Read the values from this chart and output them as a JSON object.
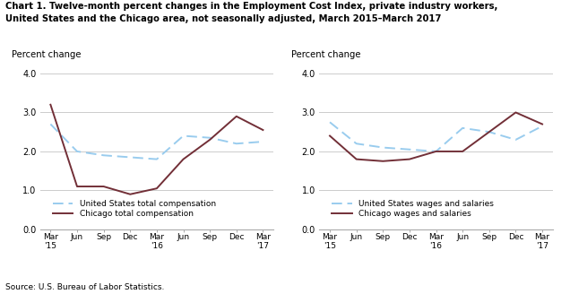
{
  "title_line1": "Chart 1. Twelve-month percent changes in the Employment Cost Index, private industry workers,",
  "title_line2": "United States and the Chicago area, not seasonally adjusted, March 2015–March 2017",
  "source": "Source: U.S. Bureau of Labor Statistics.",
  "ylabel": "Percent change",
  "xlabels": [
    "Mar\n'15",
    "Jun",
    "Sep",
    "Dec",
    "Mar\n'16",
    "Jun",
    "Sep",
    "Dec",
    "Mar\n'17"
  ],
  "ylim": [
    0.0,
    4.0
  ],
  "yticks": [
    0.0,
    1.0,
    2.0,
    3.0,
    4.0
  ],
  "left_us": [
    2.7,
    2.0,
    1.9,
    1.85,
    1.8,
    2.4,
    2.35,
    2.2,
    2.25
  ],
  "left_chicago": [
    3.2,
    1.1,
    1.1,
    0.9,
    1.05,
    1.8,
    2.3,
    2.9,
    2.55
  ],
  "left_legend_us": "United States total compensation",
  "left_legend_chicago": "Chicago total compensation",
  "right_us": [
    2.75,
    2.2,
    2.1,
    2.05,
    2.0,
    2.6,
    2.5,
    2.3,
    2.65
  ],
  "right_chicago": [
    2.4,
    1.8,
    1.75,
    1.8,
    2.0,
    2.0,
    2.5,
    3.0,
    2.7
  ],
  "right_legend_us": "United States wages and salaries",
  "right_legend_chicago": "Chicago wages and salaries",
  "us_color": "#99CCEE",
  "chicago_color": "#722F37",
  "us_lw": 1.4,
  "chicago_lw": 1.4,
  "grid_color": "#CCCCCC",
  "spine_color": "#AAAAAA"
}
